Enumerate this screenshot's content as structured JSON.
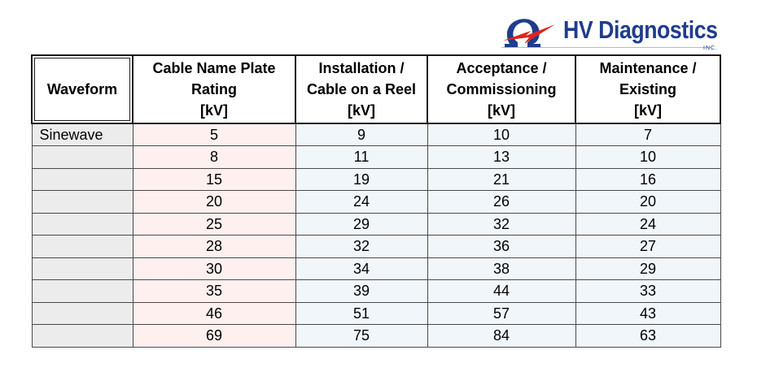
{
  "logo": {
    "name": "HV Diagnostics",
    "suffix": "INC.",
    "colors": {
      "navy": "#1f3d8c",
      "red": "#e0231c"
    }
  },
  "table": {
    "headers": {
      "waveform": "Waveform",
      "rating": [
        "Cable Name Plate",
        "Rating",
        "[kV]"
      ],
      "installation": [
        "Installation /",
        "Cable on a Reel",
        "[kV]"
      ],
      "acceptance": [
        "Acceptance /",
        "Commissioning",
        "[kV]"
      ],
      "maintenance": [
        "Maintenance /",
        "Existing",
        "[kV]"
      ]
    },
    "rows": [
      {
        "waveform": "Sinewave",
        "rating": "5",
        "installation": "9",
        "acceptance": "10",
        "maintenance": "7"
      },
      {
        "waveform": "",
        "rating": "8",
        "installation": "11",
        "acceptance": "13",
        "maintenance": "10"
      },
      {
        "waveform": "",
        "rating": "15",
        "installation": "19",
        "acceptance": "21",
        "maintenance": "16"
      },
      {
        "waveform": "",
        "rating": "20",
        "installation": "24",
        "acceptance": "26",
        "maintenance": "20"
      },
      {
        "waveform": "",
        "rating": "25",
        "installation": "29",
        "acceptance": "32",
        "maintenance": "24"
      },
      {
        "waveform": "",
        "rating": "28",
        "installation": "32",
        "acceptance": "36",
        "maintenance": "27"
      },
      {
        "waveform": "",
        "rating": "30",
        "installation": "34",
        "acceptance": "38",
        "maintenance": "29"
      },
      {
        "waveform": "",
        "rating": "35",
        "installation": "39",
        "acceptance": "44",
        "maintenance": "33"
      },
      {
        "waveform": "",
        "rating": "46",
        "installation": "51",
        "acceptance": "57",
        "maintenance": "43"
      },
      {
        "waveform": "",
        "rating": "69",
        "installation": "75",
        "acceptance": "84",
        "maintenance": "63"
      }
    ]
  }
}
